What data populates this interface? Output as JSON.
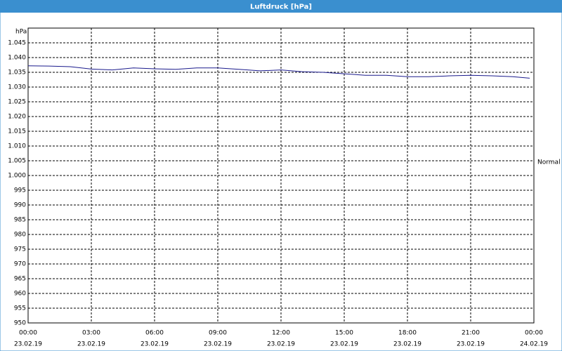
{
  "chart_data": {
    "type": "line",
    "title": "Luftdruck [hPa]",
    "y_label": "hPa",
    "annotation": "Normal",
    "color": "#1a1a8c",
    "grid": true,
    "x": [
      0,
      1,
      2,
      3,
      4,
      5,
      6,
      7,
      8,
      9,
      10,
      11,
      12,
      13,
      14,
      15,
      16,
      17,
      18,
      19,
      20,
      21,
      22,
      23,
      23.8
    ],
    "values": [
      1037.2,
      1037.1,
      1036.9,
      1036.1,
      1035.8,
      1036.5,
      1036.2,
      1036.0,
      1036.5,
      1036.5,
      1036.0,
      1035.5,
      1035.8,
      1035.2,
      1035.0,
      1034.5,
      1034.0,
      1034.0,
      1033.5,
      1033.5,
      1033.8,
      1034.0,
      1033.8,
      1033.5,
      1033.0
    ],
    "xlim": [
      0,
      24
    ],
    "xticks": [
      {
        "value": 0,
        "label": "00:00",
        "date": "23.02.19"
      },
      {
        "value": 3,
        "label": "03:00",
        "date": "23.02.19"
      },
      {
        "value": 6,
        "label": "06:00",
        "date": "23.02.19"
      },
      {
        "value": 9,
        "label": "09:00",
        "date": "23.02.19"
      },
      {
        "value": 12,
        "label": "12:00",
        "date": "23.02.19"
      },
      {
        "value": 15,
        "label": "15:00",
        "date": "23.02.19"
      },
      {
        "value": 18,
        "label": "18:00",
        "date": "23.02.19"
      },
      {
        "value": 21,
        "label": "21:00",
        "date": "23.02.19"
      },
      {
        "value": 24,
        "label": "00:00",
        "date": "24.02.19"
      }
    ],
    "ylim": [
      950,
      1050
    ],
    "yticks": [
      950,
      955,
      960,
      965,
      970,
      975,
      980,
      985,
      990,
      995,
      {
        "value": 1000,
        "label": "1.000"
      },
      {
        "value": 1005,
        "label": "1.005"
      },
      {
        "value": 1010,
        "label": "1.010"
      },
      {
        "value": 1015,
        "label": "1.015"
      },
      {
        "value": 1020,
        "label": "1.020"
      },
      {
        "value": 1025,
        "label": "1.025"
      },
      {
        "value": 1030,
        "label": "1.030"
      },
      {
        "value": 1035,
        "label": "1.035"
      },
      {
        "value": 1040,
        "label": "1.040"
      },
      {
        "value": 1045,
        "label": "1.045"
      }
    ]
  }
}
